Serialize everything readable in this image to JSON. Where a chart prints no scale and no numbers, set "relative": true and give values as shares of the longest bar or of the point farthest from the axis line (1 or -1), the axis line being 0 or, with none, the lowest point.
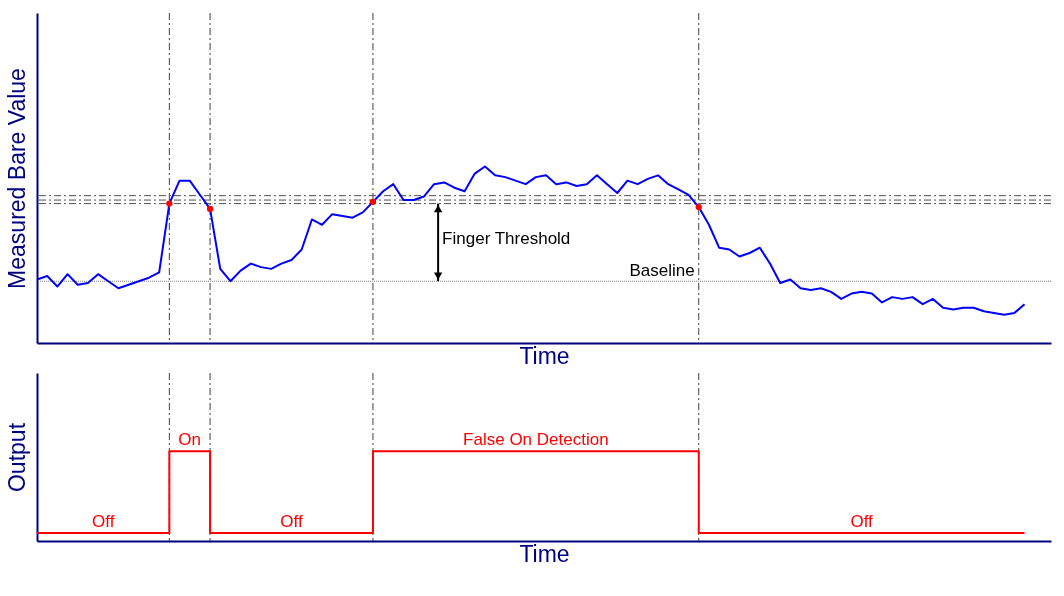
{
  "chart_data": [
    {
      "type": "line",
      "xlabel": "Time",
      "ylabel": "Measured Bare Value",
      "relative": true,
      "grid": "x",
      "categories": [
        null,
        null,
        null,
        null,
        null,
        null,
        null,
        null,
        null,
        null,
        null,
        null,
        null,
        null,
        null,
        null,
        null,
        null,
        null,
        null,
        null,
        null,
        null,
        null,
        null,
        null,
        null,
        null,
        null,
        null,
        null,
        null,
        null,
        null,
        null,
        null,
        null,
        null,
        null,
        null,
        null,
        null,
        null,
        null,
        null,
        null,
        null,
        null,
        null,
        null,
        null,
        null,
        null,
        null,
        null,
        null,
        null,
        null,
        null,
        null,
        null,
        null,
        null,
        null,
        null,
        null,
        null,
        null,
        null,
        null,
        null,
        null,
        null,
        null,
        null,
        null,
        null,
        null,
        null,
        null,
        null,
        null,
        null,
        null,
        null,
        null,
        null,
        null,
        null,
        null,
        null,
        null,
        null,
        null,
        null,
        null,
        null,
        null
      ],
      "series": [
        {
          "type": "line",
          "color": "#0000ff",
          "values": [
            0.36,
            0.38,
            0.32,
            0.39,
            0.33,
            0.34,
            0.39,
            0.35,
            0.31,
            0.33,
            0.35,
            0.37,
            0.4,
            0.79,
            0.92,
            0.92,
            0.84,
            0.76,
            0.42,
            0.35,
            0.41,
            0.45,
            0.43,
            0.42,
            0.45,
            0.47,
            0.53,
            0.7,
            0.67,
            0.73,
            0.72,
            0.71,
            0.74,
            0.8,
            0.86,
            0.9,
            0.81,
            0.81,
            0.83,
            0.9,
            0.91,
            0.88,
            0.86,
            0.96,
            1.0,
            0.95,
            0.94,
            0.92,
            0.9,
            0.94,
            0.95,
            0.9,
            0.91,
            0.89,
            0.9,
            0.95,
            0.9,
            0.85,
            0.92,
            0.9,
            0.93,
            0.95,
            0.9,
            0.87,
            0.84,
            0.77,
            0.67,
            0.54,
            0.53,
            0.49,
            0.51,
            0.54,
            0.45,
            0.34,
            0.36,
            0.31,
            0.3,
            0.31,
            0.29,
            0.25,
            0.28,
            0.29,
            0.28,
            0.23,
            0.26,
            0.25,
            0.26,
            0.22,
            0.25,
            0.2,
            0.19,
            0.2,
            0.2,
            0.18,
            0.17,
            0.16,
            0.17,
            0.22
          ]
        }
      ],
      "ref_lines": [
        {
          "axis": "y",
          "value": 0.35,
          "label": "Baseline",
          "color": "#808080",
          "line_style": "dotted"
        },
        {
          "axis": "y",
          "value": 0.835,
          "color": "#505050",
          "line_style": "dashed"
        },
        {
          "axis": "y",
          "value": 0.81,
          "color": "#505050",
          "line_style": "dashed"
        },
        {
          "axis": "y",
          "value": 0.79,
          "color": "#505050",
          "line_style": "dashed"
        }
      ],
      "annotations": [
        "Finger Threshold"
      ]
    },
    {
      "type": "step",
      "xlabel": "Time",
      "ylabel": "Output",
      "relative": true,
      "grid": "x",
      "categories": [
        null,
        null,
        null,
        null,
        null,
        null,
        null,
        null,
        null,
        null,
        null,
        null,
        null,
        null,
        null,
        null,
        null,
        null,
        null,
        null,
        null,
        null,
        null,
        null,
        null,
        null,
        null,
        null,
        null,
        null,
        null,
        null,
        null,
        null,
        null,
        null,
        null,
        null,
        null,
        null,
        null,
        null,
        null,
        null,
        null,
        null,
        null,
        null,
        null,
        null,
        null,
        null,
        null,
        null,
        null,
        null,
        null,
        null,
        null,
        null,
        null,
        null,
        null,
        null,
        null,
        null,
        null,
        null,
        null,
        null,
        null,
        null,
        null,
        null,
        null,
        null,
        null,
        null,
        null,
        null,
        null,
        null,
        null,
        null,
        null,
        null,
        null,
        null,
        null,
        null,
        null,
        null,
        null,
        null,
        null,
        null,
        null,
        null
      ],
      "series": [
        {
          "type": "step",
          "color": "#ff0000",
          "values": [
            0.09,
            0.09,
            0.09,
            0.09,
            0.09,
            0.09,
            0.09,
            0.09,
            0.09,
            0.09,
            0.09,
            0.09,
            0.09,
            1,
            1,
            1,
            1,
            0.09,
            0.09,
            0.09,
            0.09,
            0.09,
            0.09,
            0.09,
            0.09,
            0.09,
            0.09,
            0.09,
            0.09,
            0.09,
            0.09,
            0.09,
            0.09,
            1,
            1,
            1,
            1,
            1,
            1,
            1,
            1,
            1,
            1,
            1,
            1,
            1,
            1,
            1,
            1,
            1,
            1,
            1,
            1,
            1,
            1,
            1,
            1,
            1,
            1,
            1,
            1,
            1,
            1,
            1,
            1,
            0.09,
            0.09,
            0.09,
            0.09,
            0.09,
            0.09,
            0.09,
            0.09,
            0.09,
            0.09,
            0.09,
            0.09,
            0.09,
            0.09,
            0.09,
            0.09,
            0.09,
            0.09,
            0.09,
            0.09,
            0.09,
            0.09,
            0.09,
            0.09,
            0.09,
            0.09,
            0.09,
            0.09,
            0.09,
            0.09,
            0.09,
            0.09,
            0.09
          ]
        }
      ],
      "annotations": [
        "Off",
        "On",
        "Off",
        "False On Detection",
        "Off"
      ]
    }
  ]
}
